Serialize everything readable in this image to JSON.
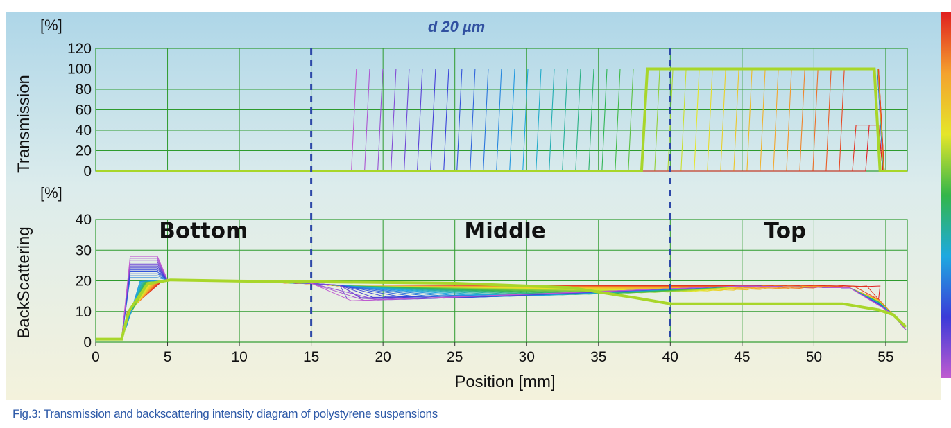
{
  "caption": "Fig.3: Transmission and backscattering intensity diagram of polystyrene suspensions",
  "chart_data": [
    {
      "type": "line",
      "title": "d 20 µm",
      "ylabel": "Transmission",
      "yunit": "[%]",
      "xlim": [
        0,
        56.5
      ],
      "ylim": [
        0,
        120
      ],
      "yticks": [
        0,
        20,
        40,
        60,
        80,
        100,
        120
      ],
      "xgrid": [
        5,
        10,
        15,
        20,
        25,
        30,
        35,
        40,
        45,
        50,
        55
      ],
      "grid": true,
      "profile_count": 40,
      "front_start_mm": 17.8,
      "front_end_mm": 53.6,
      "plateau": 100,
      "drop_position_mm": 54.5,
      "highlighted_front_mm": 38.0,
      "colors": [
        "#c05bd0",
        "#3b3bd8",
        "#1ea9e0",
        "#33b64a",
        "#e5e62a",
        "#f4a22e",
        "#e02020"
      ],
      "highlight_color": "#a8d62a"
    },
    {
      "type": "line",
      "ylabel": "BackScattering",
      "yunit": "[%]",
      "xlabel": "Position [mm]",
      "xlim": [
        0,
        56.5
      ],
      "ylim": [
        0,
        40
      ],
      "xticks": [
        0,
        5,
        10,
        15,
        20,
        25,
        30,
        35,
        40,
        45,
        50,
        55
      ],
      "yticks": [
        0,
        10,
        20,
        30,
        40
      ],
      "grid": true,
      "regions": [
        {
          "label": "Bottom",
          "x": 7.5
        },
        {
          "label": "Middle",
          "x": 28.5
        },
        {
          "label": "Top",
          "x": 48
        }
      ],
      "separators_mm": [
        15,
        40
      ],
      "baseline": 1,
      "plateau": 20.3,
      "early_peak": 28,
      "late_bottom_level": 18.5,
      "sediment_level": 13.5,
      "final_highlight_level": 12.5
    }
  ],
  "colorbar": [
    "#e02020",
    "#f4a22e",
    "#e5e62a",
    "#33b64a",
    "#1ea9e0",
    "#3b3bd8",
    "#c05bd0"
  ]
}
